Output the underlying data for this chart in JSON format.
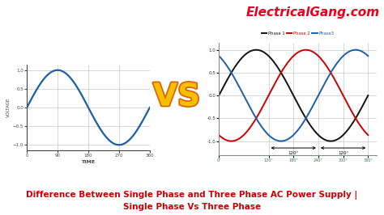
{
  "title_line1": "Difference Between Single Phase and Three Phase AC Power Supply |",
  "title_line2": "Single Phase Vs Three Phase",
  "title_color": "#cc0000",
  "title_fontsize": 7.5,
  "brand": "ElectricalGang.com",
  "brand_color": "#e8001c",
  "brand_fontsize": 11,
  "vs_text": "VS",
  "vs_color": "#f5c000",
  "vs_fontsize": 28,
  "vs_stroke_color": "#e06000",
  "bg_color": "#ffffff",
  "single_phase": {
    "color": "#1a5fa8",
    "ylabel": "VOLTAGE",
    "xlabel": "TIME",
    "xticks": [
      0,
      90,
      180,
      270,
      360
    ],
    "yticks": [
      -1,
      -0.5,
      0,
      0.5,
      1
    ],
    "ylim": [
      -1.15,
      1.15
    ],
    "xlim": [
      0,
      360
    ],
    "grid_color": "#bbbbbb",
    "axis_color": "#444444",
    "linewidth": 1.6
  },
  "three_phase": {
    "phase1_color": "#111111",
    "phase2_color": "#cc0000",
    "phase3_color": "#1a5fa8",
    "phase1_label": "Phase 1",
    "phase2_label": "Phase 2",
    "phase3_label": "Phase3",
    "yticks": [
      -1.0,
      -0.5,
      0.0,
      0.5,
      1.0
    ],
    "ylim": [
      -1.3,
      1.15
    ],
    "xlim": [
      0,
      380
    ],
    "grid_color": "#bbbbbb",
    "angle_label": "120°",
    "linewidth": 1.4,
    "tick_label_color": "#2e7d32",
    "xtick_positions": [
      0,
      120,
      180,
      240,
      300,
      360
    ],
    "xtick_labels": [
      "0°",
      "120°",
      "180°",
      "240°",
      "300°",
      "360°"
    ]
  }
}
